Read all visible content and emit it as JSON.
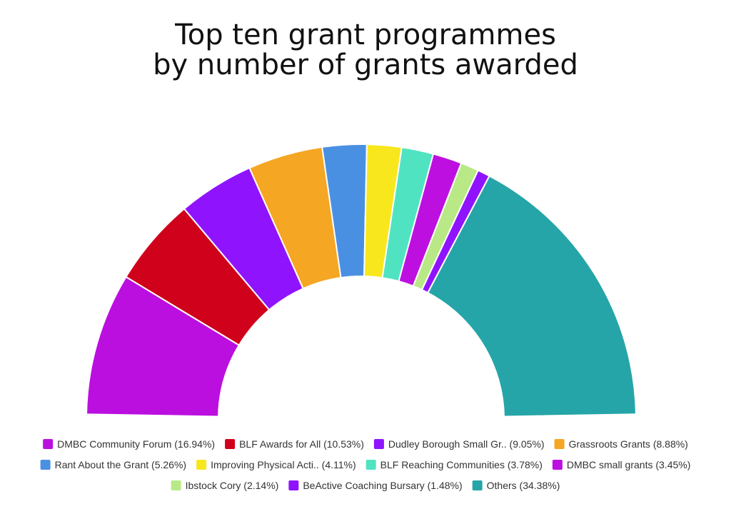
{
  "chart_data": {
    "type": "pie",
    "variant": "semicircle-donut",
    "title_lines": [
      "Top ten grant programmes",
      "by number of grants awarded"
    ],
    "legend_placement": "bottom",
    "slices": [
      {
        "label": "DMBC Community Forum",
        "value": 16.94,
        "legend": "DMBC Community Forum (16.94%)",
        "color": "#bb0fe0"
      },
      {
        "label": "BLF Awards for All",
        "value": 10.53,
        "legend": "BLF Awards for All (10.53%)",
        "color": "#d0021b"
      },
      {
        "label": "Dudley Borough Small Gr..",
        "value": 9.05,
        "legend": "Dudley Borough Small Gr.. (9.05%)",
        "color": "#9013fe"
      },
      {
        "label": "Grassroots Grants",
        "value": 8.88,
        "legend": "Grassroots Grants (8.88%)",
        "color": "#f5a623"
      },
      {
        "label": "Rant About the Grant",
        "value": 5.26,
        "legend": "Rant About the Grant (5.26%)",
        "color": "#4a90e2"
      },
      {
        "label": "Improving Physical Acti..",
        "value": 4.11,
        "legend": "Improving Physical Acti.. (4.11%)",
        "color": "#f8e71c"
      },
      {
        "label": "BLF Reaching Communities",
        "value": 3.78,
        "legend": "BLF Reaching Communities (3.78%)",
        "color": "#50e3c2"
      },
      {
        "label": "DMBC small grants",
        "value": 3.45,
        "legend": "DMBC small grants (3.45%)",
        "color": "#bd10e0"
      },
      {
        "label": "Ibstock Cory",
        "value": 2.14,
        "legend": "Ibstock Cory (2.14%)",
        "color": "#b8e986"
      },
      {
        "label": "BeActive Coaching Bursary",
        "value": 1.48,
        "legend": "BeActive Coaching Bursary (1.48%)",
        "color": "#9013fe"
      },
      {
        "label": "Others",
        "value": 34.38,
        "legend": "Others (34.38%)",
        "color": "#26a5a8"
      }
    ]
  }
}
